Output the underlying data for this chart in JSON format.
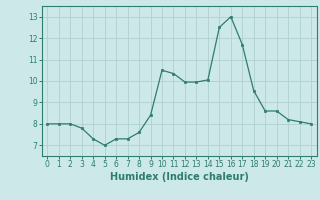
{
  "x": [
    0,
    1,
    2,
    3,
    4,
    5,
    6,
    7,
    8,
    9,
    10,
    11,
    12,
    13,
    14,
    15,
    16,
    17,
    18,
    19,
    20,
    21,
    22,
    23
  ],
  "y": [
    8.0,
    8.0,
    8.0,
    7.8,
    7.3,
    7.0,
    7.3,
    7.3,
    7.6,
    8.4,
    10.5,
    10.35,
    9.95,
    9.95,
    10.05,
    12.5,
    13.0,
    11.7,
    9.55,
    8.6,
    8.6,
    8.2,
    8.1,
    8.0
  ],
  "xlim": [
    -0.5,
    23.5
  ],
  "ylim": [
    6.5,
    13.5
  ],
  "yticks": [
    7,
    8,
    9,
    10,
    11,
    12,
    13
  ],
  "xticks": [
    0,
    1,
    2,
    3,
    4,
    5,
    6,
    7,
    8,
    9,
    10,
    11,
    12,
    13,
    14,
    15,
    16,
    17,
    18,
    19,
    20,
    21,
    22,
    23
  ],
  "xlabel": "Humidex (Indice chaleur)",
  "line_color": "#2e7d6e",
  "marker": "s",
  "marker_size": 1.8,
  "bg_color": "#cce8e8",
  "grid_color": "#b0d0d0",
  "tick_fontsize": 5.5,
  "label_fontsize": 7.0,
  "linewidth": 0.9
}
